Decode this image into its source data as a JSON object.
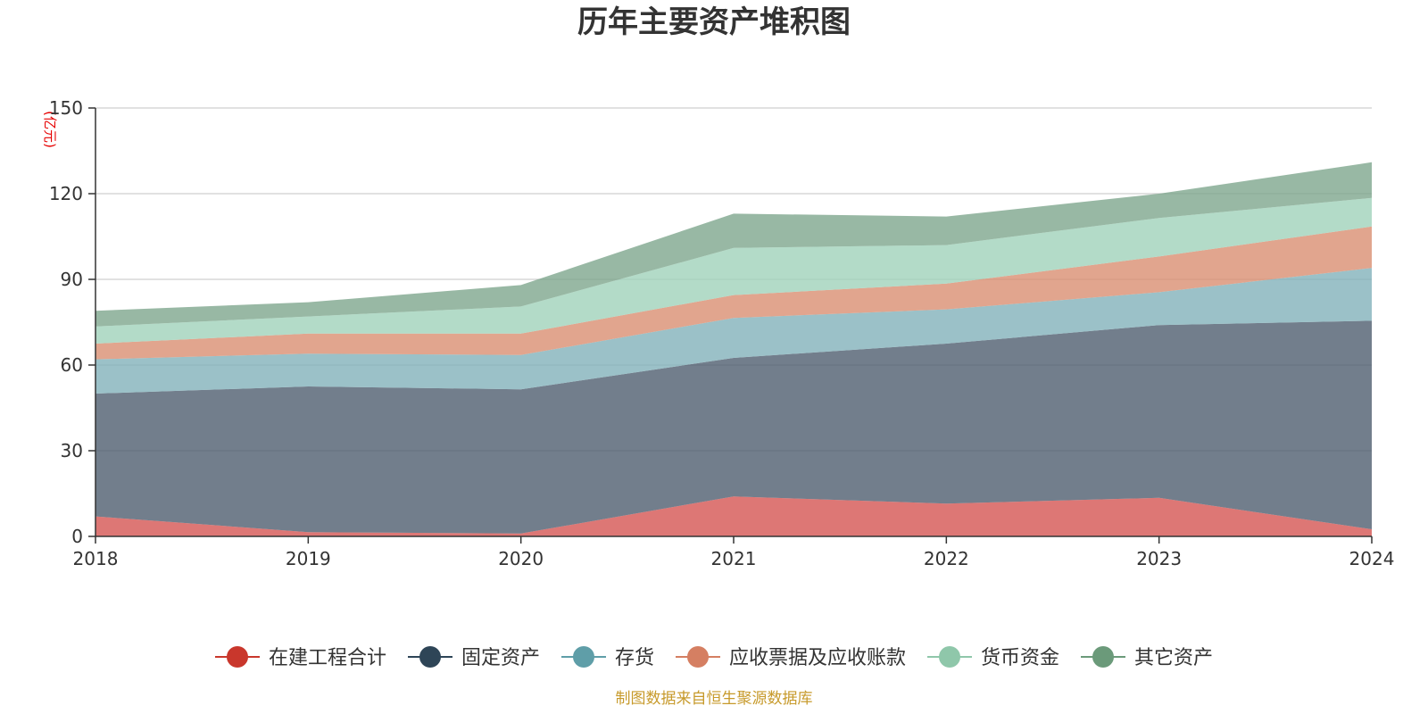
{
  "chart_data": {
    "type": "area",
    "stacked": true,
    "title": "历年主要资产堆积图",
    "unit_label": "(亿元)",
    "x": [
      "2018",
      "2019",
      "2020",
      "2021",
      "2022",
      "2023",
      "2024"
    ],
    "ylim": [
      0,
      150
    ],
    "yticks": [
      "0",
      "30",
      "60",
      "90",
      "120",
      "150"
    ],
    "grid": true,
    "legend_position": "bottom",
    "series": [
      {
        "name": "在建工程合计",
        "color": "#d3514e",
        "values": [
          7,
          1.5,
          1,
          14,
          11.5,
          13.5,
          2.5
        ]
      },
      {
        "name": "固定资产",
        "color": "#4a5a6b",
        "values": [
          43,
          51,
          50.5,
          48.5,
          56,
          60.5,
          73
        ]
      },
      {
        "name": "存货",
        "color": "#7fb0b8",
        "values": [
          12,
          11.5,
          12,
          14,
          12,
          11.5,
          18.5
        ]
      },
      {
        "name": "应收票据及应收账款",
        "color": "#d98c6e",
        "values": [
          5.5,
          7,
          7.5,
          8,
          9,
          12.5,
          14.5
        ]
      },
      {
        "name": "货币资金",
        "color": "#9ed1b8",
        "values": [
          6,
          6,
          9.5,
          16.5,
          13.5,
          13.5,
          10
        ]
      },
      {
        "name": "其它资产",
        "color": "#7ba48a",
        "values": [
          5.5,
          5,
          7.5,
          12,
          10,
          8.5,
          12.5
        ]
      }
    ],
    "legend_marker_colors": [
      "#c9372c",
      "#2e4557",
      "#5f9ea8",
      "#d57f62",
      "#8fc7aa",
      "#6b9a7a"
    ]
  },
  "footer": {
    "source": "制图数据来自恒生聚源数据库"
  }
}
